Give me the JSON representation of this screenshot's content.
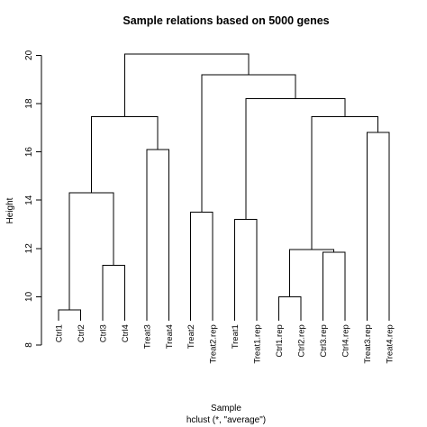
{
  "chart_data": {
    "type": "dendrogram",
    "title": "Sample relations based on 5000 genes",
    "xlabel": "Sample",
    "xlabel_sub": "hclust (*, \"average\")",
    "ylabel": "Height",
    "ylim": [
      8,
      20.5
    ],
    "yticks": [
      8,
      10,
      12,
      14,
      16,
      18,
      20
    ],
    "leaf_bottom_height": 9.0,
    "leaves": [
      "Ctrl1",
      "Ctrl2",
      "Ctrl3",
      "Ctrl4",
      "Treat3",
      "Treat4",
      "Treat2",
      "Treat2.rep",
      "Treat1",
      "Treat1.rep",
      "Ctrl1.rep",
      "Ctrl2.rep",
      "Ctrl3.rep",
      "Ctrl4.rep",
      "Treat3.rep",
      "Treat4.rep"
    ],
    "merges": [
      {
        "left": "L:0",
        "right": "L:1",
        "height": 9.45
      },
      {
        "left": "L:2",
        "right": "L:3",
        "height": 11.3
      },
      {
        "left": "M:0",
        "right": "M:1",
        "height": 14.3
      },
      {
        "left": "L:4",
        "right": "L:5",
        "height": 16.1
      },
      {
        "left": "M:2",
        "right": "M:3",
        "height": 17.45
      },
      {
        "left": "L:6",
        "right": "L:7",
        "height": 13.5
      },
      {
        "left": "L:8",
        "right": "L:9",
        "height": 13.2
      },
      {
        "left": "L:10",
        "right": "L:11",
        "height": 10.0
      },
      {
        "left": "L:12",
        "right": "L:13",
        "height": 11.85
      },
      {
        "left": "M:7",
        "right": "M:8",
        "height": 11.95
      },
      {
        "left": "L:14",
        "right": "L:15",
        "height": 16.8
      },
      {
        "left": "M:9",
        "right": "M:10",
        "height": 17.45
      },
      {
        "left": "M:6",
        "right": "M:11",
        "height": 18.2
      },
      {
        "left": "M:5",
        "right": "M:12",
        "height": 19.2
      },
      {
        "left": "M:4",
        "right": "M:13",
        "height": 20.05
      }
    ]
  }
}
